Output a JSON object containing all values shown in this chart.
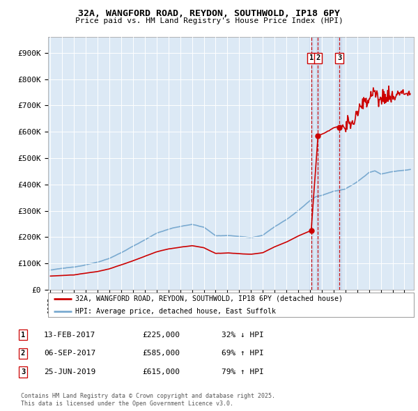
{
  "title1": "32A, WANGFORD ROAD, REYDON, SOUTHWOLD, IP18 6PY",
  "title2": "Price paid vs. HM Land Registry's House Price Index (HPI)",
  "background_color": "#dce9f5",
  "plot_bg_color": "#dce9f5",
  "hpi_color": "#7aaad0",
  "price_color": "#cc0000",
  "yticks": [
    0,
    100000,
    200000,
    300000,
    400000,
    500000,
    600000,
    700000,
    800000,
    900000
  ],
  "ytick_labels": [
    "£0",
    "£100K",
    "£200K",
    "£300K",
    "£400K",
    "£500K",
    "£600K",
    "£700K",
    "£800K",
    "£900K"
  ],
  "xmin": 1994.8,
  "xmax": 2025.8,
  "ymin": 0,
  "ymax": 960000,
  "sale1_year": 2017.1,
  "sale1_price": 225000,
  "sale2_year": 2017.68,
  "sale2_price": 585000,
  "sale3_year": 2019.48,
  "sale3_price": 615000,
  "transactions": [
    {
      "num": 1,
      "date": "13-FEB-2017",
      "price": 225000,
      "pct": "32% ↓ HPI"
    },
    {
      "num": 2,
      "date": "06-SEP-2017",
      "price": 585000,
      "pct": "69% ↑ HPI"
    },
    {
      "num": 3,
      "date": "25-JUN-2019",
      "price": 615000,
      "pct": "79% ↑ HPI"
    }
  ],
  "legend_line1": "32A, WANGFORD ROAD, REYDON, SOUTHWOLD, IP18 6PY (detached house)",
  "legend_line2": "HPI: Average price, detached house, East Suffolk",
  "footer1": "Contains HM Land Registry data © Crown copyright and database right 2025.",
  "footer2": "This data is licensed under the Open Government Licence v3.0."
}
